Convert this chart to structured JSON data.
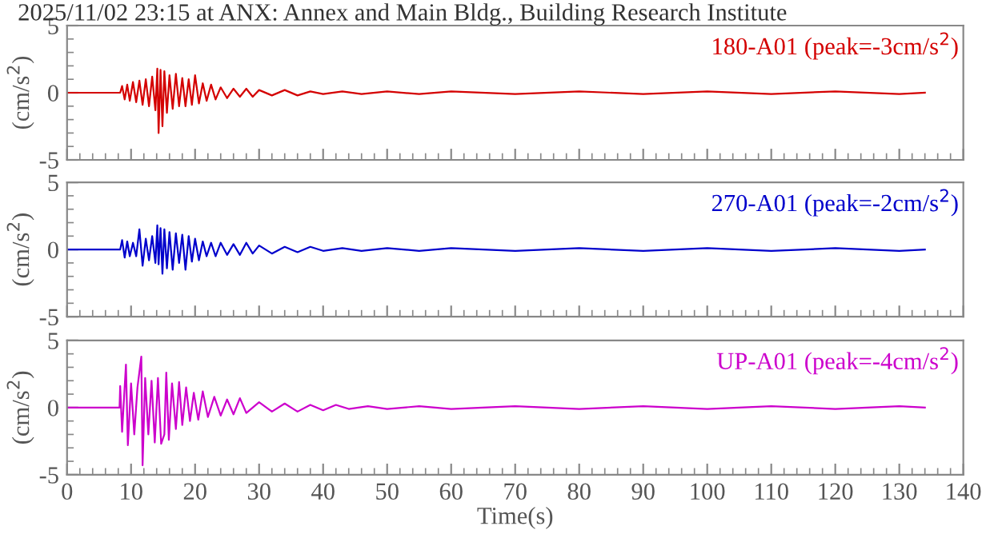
{
  "chart_data": [
    {
      "type": "line",
      "title": "2025/11/02 23:15 at ANX: Annex and Main Bldg., Building Research Institute",
      "ylabel": "(cm/s$^{2}$)",
      "xlim": [
        0,
        140
      ],
      "xticks": [
        0,
        10,
        20,
        30,
        40,
        50,
        60,
        70,
        80,
        90,
        100,
        110,
        120,
        130,
        140
      ],
      "ylim": [
        -5,
        5
      ],
      "yticks": [
        -5,
        0,
        5
      ],
      "tick_labels": "y",
      "series": [
        {
          "name": "180-A01 (peak=-3cm/s$^{2}$)",
          "color": "#d40000",
          "x": [
            0,
            8.3,
            8.6,
            9.0,
            9.4,
            9.8,
            10.3,
            10.8,
            11.3,
            11.8,
            12.3,
            12.8,
            13.3,
            13.8,
            14.1,
            14.3,
            14.6,
            14.9,
            15.2,
            15.6,
            16,
            16.5,
            17,
            17.5,
            18,
            18.5,
            19,
            19.5,
            20,
            20.6,
            21.2,
            21.8,
            22.5,
            23.2,
            24,
            25,
            26,
            27,
            28,
            29,
            30,
            32,
            34,
            36,
            38,
            40,
            43,
            46,
            50,
            55,
            60,
            70,
            80,
            90,
            100,
            110,
            120,
            130,
            134
          ],
          "values": [
            0,
            0,
            0.5,
            -0.5,
            0.6,
            -0.6,
            0.8,
            -0.7,
            0.9,
            -0.9,
            1.0,
            -1.0,
            1.2,
            -1.3,
            1.8,
            -3.0,
            1.7,
            -2.5,
            1.6,
            -1.5,
            1.3,
            -1.2,
            1.4,
            -1.0,
            1.1,
            -1.0,
            1.0,
            -0.9,
            1.3,
            -0.8,
            0.7,
            -0.6,
            0.6,
            -0.5,
            0.4,
            -0.4,
            0.3,
            -0.3,
            0.3,
            -0.3,
            0.2,
            -0.2,
            0.2,
            -0.2,
            0.1,
            -0.1,
            0.1,
            -0.1,
            0.1,
            -0.1,
            0.1,
            -0.1,
            0.1,
            -0.1,
            0.1,
            -0.1,
            0.1,
            -0.1,
            0
          ]
        }
      ]
    },
    {
      "type": "line",
      "ylabel": "(cm/s$^{2}$)",
      "xlim": [
        0,
        140
      ],
      "xticks": [
        0,
        10,
        20,
        30,
        40,
        50,
        60,
        70,
        80,
        90,
        100,
        110,
        120,
        130,
        140
      ],
      "ylim": [
        -5,
        5
      ],
      "yticks": [
        -5,
        0,
        5
      ],
      "tick_labels": "y",
      "series": [
        {
          "name": "270-A01 (peak=-2cm/s$^{2}$)",
          "color": "#0000cc",
          "x": [
            0,
            8.3,
            8.6,
            9.0,
            9.4,
            9.8,
            10.3,
            10.8,
            11.3,
            11.8,
            12.3,
            12.8,
            13.3,
            13.8,
            14.1,
            14.3,
            14.6,
            14.9,
            15.2,
            15.6,
            16,
            16.5,
            17,
            17.5,
            18,
            18.5,
            19,
            19.5,
            20,
            20.6,
            21.2,
            21.8,
            22.5,
            23.2,
            24,
            25,
            26,
            27,
            28,
            29,
            30,
            32,
            34,
            36,
            38,
            40,
            43,
            46,
            50,
            55,
            60,
            70,
            80,
            90,
            100,
            110,
            120,
            130,
            134
          ],
          "values": [
            0,
            0,
            0.7,
            -0.6,
            0.6,
            -0.5,
            0.5,
            -0.5,
            1.5,
            -1.2,
            0.8,
            -0.8,
            1.0,
            -1.0,
            1.8,
            -1.1,
            1.6,
            -1.8,
            1.5,
            -1.4,
            1.3,
            -1.5,
            1.2,
            -1.0,
            1.1,
            -1.5,
            1.0,
            -0.9,
            0.8,
            -0.8,
            0.6,
            -0.5,
            0.5,
            -0.5,
            0.5,
            -0.4,
            0.4,
            -0.4,
            0.5,
            -0.3,
            0.3,
            -0.3,
            0.2,
            -0.2,
            0.2,
            -0.1,
            0.1,
            -0.1,
            0.1,
            -0.1,
            0.1,
            -0.1,
            0.1,
            -0.1,
            0.1,
            -0.1,
            0.1,
            -0.1,
            0
          ]
        }
      ]
    },
    {
      "type": "line",
      "xlabel": "Time(s)",
      "ylabel": "(cm/s$^{2}$)",
      "xlim": [
        0,
        140
      ],
      "xticks": [
        0,
        10,
        20,
        30,
        40,
        50,
        60,
        70,
        80,
        90,
        100,
        110,
        120,
        130,
        140
      ],
      "ylim": [
        -5,
        5
      ],
      "yticks": [
        -5,
        0,
        5
      ],
      "series": [
        {
          "name": "UP-A01 (peak=-4cm/s$^{2}$)",
          "color": "#cc00cc",
          "x": [
            0,
            8.2,
            8.3,
            8.6,
            9.2,
            9.5,
            10,
            10.5,
            11,
            11.6,
            11.8,
            12.2,
            12.7,
            13.2,
            13.7,
            14.2,
            14.7,
            15.2,
            15.5,
            15.9,
            16.4,
            17,
            17.5,
            18,
            18.6,
            19.2,
            19.8,
            20.5,
            21.2,
            22,
            23,
            24,
            25,
            26,
            27,
            28,
            30,
            32,
            34,
            36,
            38,
            40,
            42,
            44,
            47,
            50,
            55,
            60,
            70,
            80,
            90,
            100,
            110,
            120,
            130,
            134
          ],
          "values": [
            0,
            0,
            1.6,
            -1.8,
            3.2,
            -2.8,
            1.8,
            -2.0,
            1.5,
            3.8,
            -4.3,
            2.2,
            -2.0,
            2.0,
            -2.6,
            2.2,
            -2.7,
            -2.0,
            2.6,
            -2.4,
            1.8,
            -1.6,
            1.9,
            -1.3,
            1.5,
            -1.0,
            1.1,
            -0.9,
            1.2,
            -0.7,
            0.8,
            -0.6,
            0.6,
            -0.5,
            0.7,
            -0.4,
            0.4,
            -0.3,
            0.3,
            -0.3,
            0.2,
            -0.2,
            0.2,
            -0.1,
            0.1,
            -0.1,
            0.1,
            -0.1,
            0.1,
            -0.1,
            0.1,
            -0.1,
            0.1,
            -0.1,
            0.1,
            0
          ]
        }
      ]
    }
  ]
}
